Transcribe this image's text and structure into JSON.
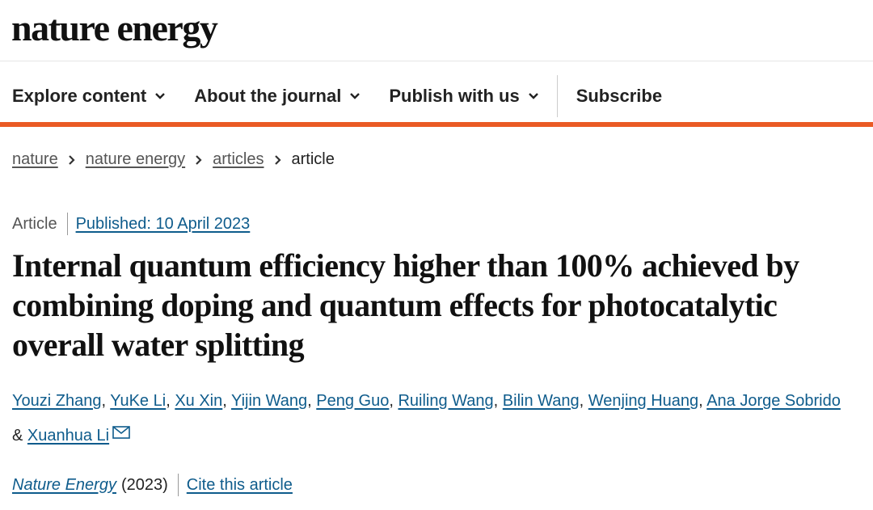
{
  "header": {
    "logo": "nature energy"
  },
  "nav": [
    "Explore content",
    "About the journal",
    "Publish with us",
    "Subscribe"
  ],
  "breadcrumbs": [
    "nature",
    "nature energy",
    "articles",
    "article"
  ],
  "article": {
    "type": "Article",
    "published": "Published: 10 April 2023",
    "title": "Internal quantum efficiency higher than 100% achieved by combining doping and quantum effects for photocatalytic overall water splitting",
    "authors": [
      "Youzi Zhang",
      "YuKe Li",
      "Xu Xin",
      "Yijin Wang",
      "Peng Guo",
      "Ruiling Wang",
      "Bilin Wang",
      "Wenjing Huang",
      "Ana Jorge Sobrido",
      "Xuanhua Li"
    ],
    "author_separator": ",",
    "last_separator": "&",
    "journal": "Nature Energy",
    "year": "(2023)",
    "cite": "Cite this article"
  }
}
